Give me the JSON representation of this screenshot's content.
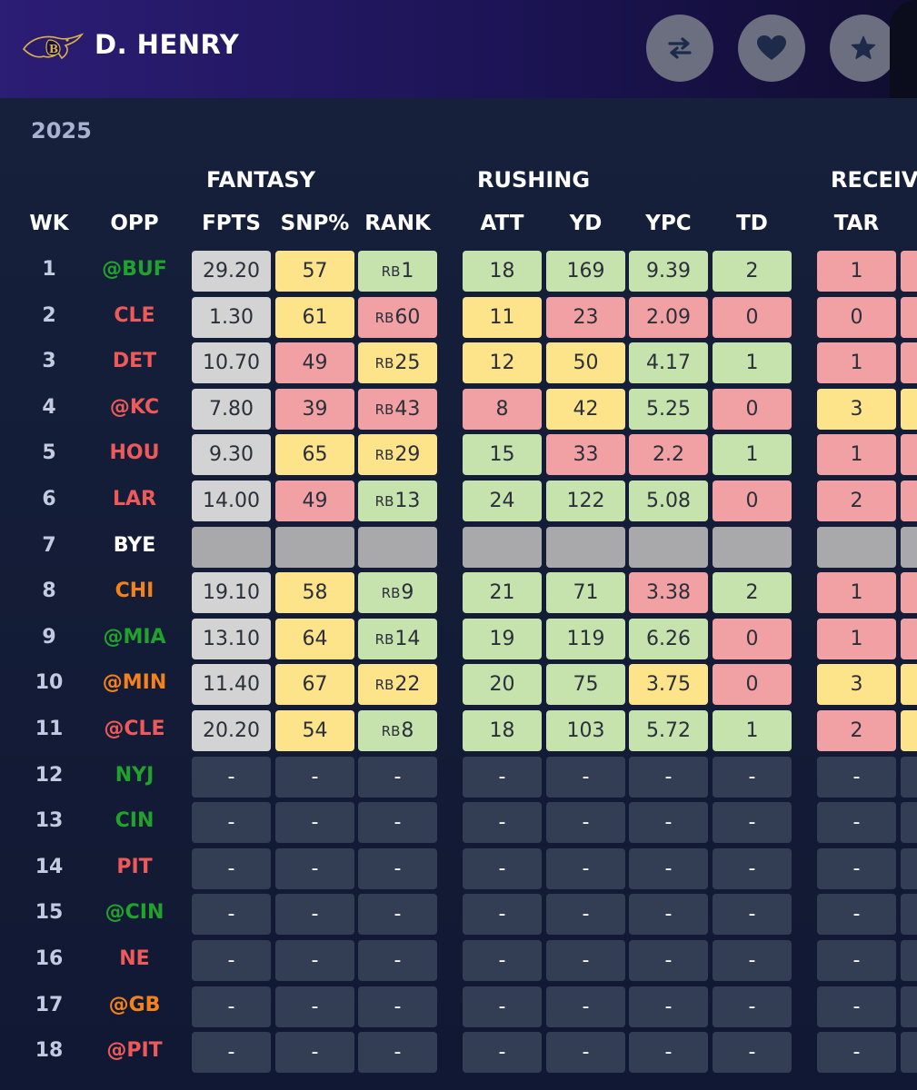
{
  "player": {
    "name": "D. HENRY",
    "team_logo": "ravens-logo"
  },
  "header_buttons": [
    {
      "name": "compare-button",
      "icon": "swap-arrows-icon"
    },
    {
      "name": "favorite-button",
      "icon": "heart-icon"
    },
    {
      "name": "star-button",
      "icon": "star-icon"
    }
  ],
  "season": "2025",
  "groups": {
    "fantasy": "FANTASY",
    "rushing": "RUSHING",
    "receiving": "RECEIV"
  },
  "columns": {
    "wk": "WK",
    "opp": "OPP",
    "fpts": "FPTS",
    "snp": "SNP%",
    "rank": "RANK",
    "att": "ATT",
    "yd": "YD",
    "ypc": "YPC",
    "td": "TD",
    "tar": "TAR"
  },
  "colors": {
    "gray": "#d3d3d3",
    "yellow": "#fde48a",
    "red": "#f1a1a4",
    "green": "#c6e3ad",
    "bye": "#a9a9ab",
    "empty": "#333e55",
    "opp_green": "#1fa32c",
    "opp_red": "#ee5a5a",
    "opp_orange": "#f3821c",
    "opp_white": "#ffffff"
  },
  "rows": [
    {
      "wk": "1",
      "opp": "@BUF",
      "opp_color": "green",
      "cells": [
        {
          "v": "29.20",
          "c": "gray"
        },
        {
          "v": "57",
          "c": "yellow"
        },
        {
          "pre": "RB",
          "v": "1",
          "c": "green"
        },
        {
          "v": "18",
          "c": "green"
        },
        {
          "v": "169",
          "c": "green"
        },
        {
          "v": "9.39",
          "c": "green"
        },
        {
          "v": "2",
          "c": "green"
        },
        {
          "v": "1",
          "c": "red"
        },
        {
          "v": "",
          "c": "red"
        }
      ]
    },
    {
      "wk": "2",
      "opp": "CLE",
      "opp_color": "red",
      "cells": [
        {
          "v": "1.30",
          "c": "gray"
        },
        {
          "v": "61",
          "c": "yellow"
        },
        {
          "pre": "RB",
          "v": "60",
          "c": "red"
        },
        {
          "v": "11",
          "c": "yellow"
        },
        {
          "v": "23",
          "c": "red"
        },
        {
          "v": "2.09",
          "c": "red"
        },
        {
          "v": "0",
          "c": "red"
        },
        {
          "v": "0",
          "c": "red"
        },
        {
          "v": "",
          "c": "red"
        }
      ]
    },
    {
      "wk": "3",
      "opp": "DET",
      "opp_color": "red",
      "cells": [
        {
          "v": "10.70",
          "c": "gray"
        },
        {
          "v": "49",
          "c": "red"
        },
        {
          "pre": "RB",
          "v": "25",
          "c": "yellow"
        },
        {
          "v": "12",
          "c": "yellow"
        },
        {
          "v": "50",
          "c": "yellow"
        },
        {
          "v": "4.17",
          "c": "green"
        },
        {
          "v": "1",
          "c": "green"
        },
        {
          "v": "1",
          "c": "red"
        },
        {
          "v": "",
          "c": "red"
        }
      ]
    },
    {
      "wk": "4",
      "opp": "@KC",
      "opp_color": "red",
      "cells": [
        {
          "v": "7.80",
          "c": "gray"
        },
        {
          "v": "39",
          "c": "red"
        },
        {
          "pre": "RB",
          "v": "43",
          "c": "red"
        },
        {
          "v": "8",
          "c": "red"
        },
        {
          "v": "42",
          "c": "yellow"
        },
        {
          "v": "5.25",
          "c": "green"
        },
        {
          "v": "0",
          "c": "red"
        },
        {
          "v": "3",
          "c": "yellow"
        },
        {
          "v": "",
          "c": "yellow"
        }
      ]
    },
    {
      "wk": "5",
      "opp": "HOU",
      "opp_color": "red",
      "cells": [
        {
          "v": "9.30",
          "c": "gray"
        },
        {
          "v": "65",
          "c": "yellow"
        },
        {
          "pre": "RB",
          "v": "29",
          "c": "yellow"
        },
        {
          "v": "15",
          "c": "green"
        },
        {
          "v": "33",
          "c": "red"
        },
        {
          "v": "2.2",
          "c": "red"
        },
        {
          "v": "1",
          "c": "green"
        },
        {
          "v": "1",
          "c": "red"
        },
        {
          "v": "",
          "c": "red"
        }
      ]
    },
    {
      "wk": "6",
      "opp": "LAR",
      "opp_color": "red",
      "cells": [
        {
          "v": "14.00",
          "c": "gray"
        },
        {
          "v": "49",
          "c": "red"
        },
        {
          "pre": "RB",
          "v": "13",
          "c": "green"
        },
        {
          "v": "24",
          "c": "green"
        },
        {
          "v": "122",
          "c": "green"
        },
        {
          "v": "5.08",
          "c": "green"
        },
        {
          "v": "0",
          "c": "red"
        },
        {
          "v": "2",
          "c": "red"
        },
        {
          "v": "",
          "c": "red"
        }
      ]
    },
    {
      "wk": "7",
      "opp": "BYE",
      "opp_color": "white",
      "cells": [
        {
          "v": "",
          "c": "bye"
        },
        {
          "v": "",
          "c": "bye"
        },
        {
          "v": "",
          "c": "bye"
        },
        {
          "v": "",
          "c": "bye"
        },
        {
          "v": "",
          "c": "bye"
        },
        {
          "v": "",
          "c": "bye"
        },
        {
          "v": "",
          "c": "bye"
        },
        {
          "v": "",
          "c": "bye"
        },
        {
          "v": "",
          "c": "bye"
        }
      ]
    },
    {
      "wk": "8",
      "opp": "CHI",
      "opp_color": "orange",
      "cells": [
        {
          "v": "19.10",
          "c": "gray"
        },
        {
          "v": "58",
          "c": "yellow"
        },
        {
          "pre": "RB",
          "v": "9",
          "c": "green"
        },
        {
          "v": "21",
          "c": "green"
        },
        {
          "v": "71",
          "c": "green"
        },
        {
          "v": "3.38",
          "c": "red"
        },
        {
          "v": "2",
          "c": "green"
        },
        {
          "v": "1",
          "c": "red"
        },
        {
          "v": "",
          "c": "red"
        }
      ]
    },
    {
      "wk": "9",
      "opp": "@MIA",
      "opp_color": "green",
      "cells": [
        {
          "v": "13.10",
          "c": "gray"
        },
        {
          "v": "64",
          "c": "yellow"
        },
        {
          "pre": "RB",
          "v": "14",
          "c": "green"
        },
        {
          "v": "19",
          "c": "green"
        },
        {
          "v": "119",
          "c": "green"
        },
        {
          "v": "6.26",
          "c": "green"
        },
        {
          "v": "0",
          "c": "red"
        },
        {
          "v": "1",
          "c": "red"
        },
        {
          "v": "",
          "c": "red"
        }
      ]
    },
    {
      "wk": "10",
      "opp": "@MIN",
      "opp_color": "orange",
      "cells": [
        {
          "v": "11.40",
          "c": "gray"
        },
        {
          "v": "67",
          "c": "yellow"
        },
        {
          "pre": "RB",
          "v": "22",
          "c": "yellow"
        },
        {
          "v": "20",
          "c": "green"
        },
        {
          "v": "75",
          "c": "green"
        },
        {
          "v": "3.75",
          "c": "yellow"
        },
        {
          "v": "0",
          "c": "red"
        },
        {
          "v": "3",
          "c": "yellow"
        },
        {
          "v": "",
          "c": "yellow"
        }
      ]
    },
    {
      "wk": "11",
      "opp": "@CLE",
      "opp_color": "red",
      "cells": [
        {
          "v": "20.20",
          "c": "gray"
        },
        {
          "v": "54",
          "c": "yellow"
        },
        {
          "pre": "RB",
          "v": "8",
          "c": "green"
        },
        {
          "v": "18",
          "c": "green"
        },
        {
          "v": "103",
          "c": "green"
        },
        {
          "v": "5.72",
          "c": "green"
        },
        {
          "v": "1",
          "c": "green"
        },
        {
          "v": "2",
          "c": "red"
        },
        {
          "v": "",
          "c": "yellow"
        }
      ]
    },
    {
      "wk": "12",
      "opp": "NYJ",
      "opp_color": "green",
      "future": true
    },
    {
      "wk": "13",
      "opp": "CIN",
      "opp_color": "green",
      "future": true
    },
    {
      "wk": "14",
      "opp": "PIT",
      "opp_color": "red",
      "future": true
    },
    {
      "wk": "15",
      "opp": "@CIN",
      "opp_color": "green",
      "future": true
    },
    {
      "wk": "16",
      "opp": "NE",
      "opp_color": "red",
      "future": true
    },
    {
      "wk": "17",
      "opp": "@GB",
      "opp_color": "orange",
      "future": true
    },
    {
      "wk": "18",
      "opp": "@PIT",
      "opp_color": "red",
      "future": true
    }
  ],
  "empty_value": "-"
}
